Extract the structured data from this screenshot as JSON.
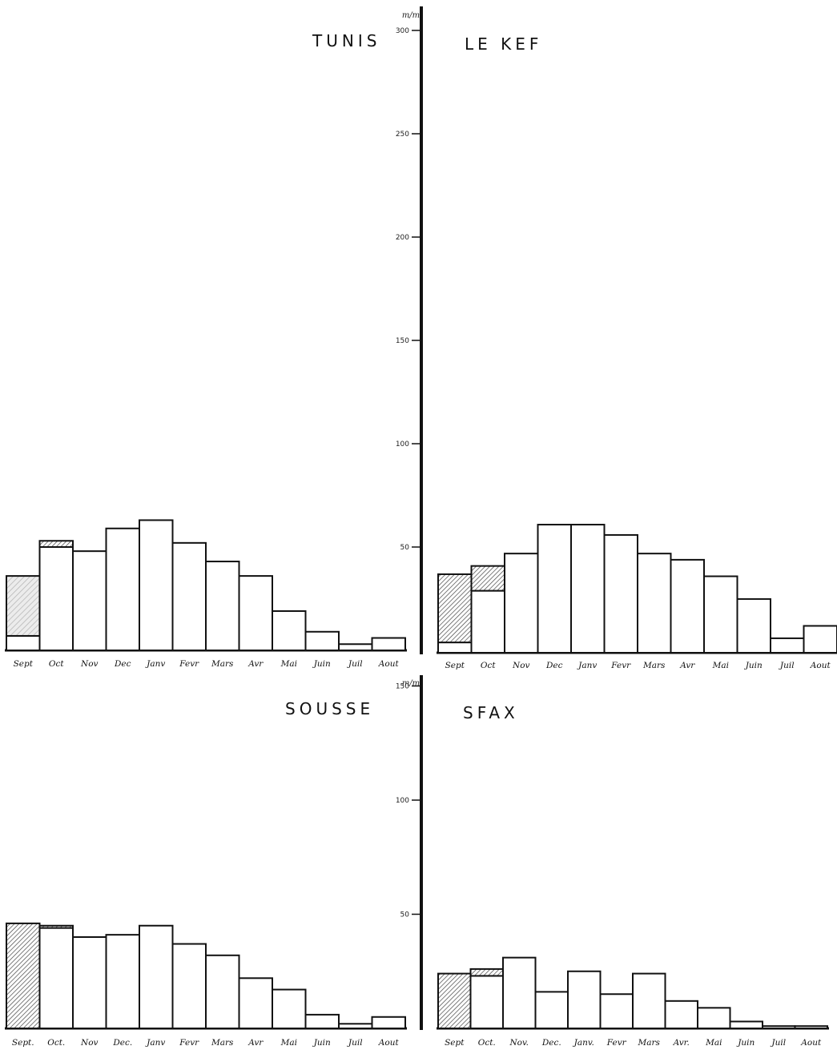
{
  "chart_data": [
    {
      "type": "bar",
      "title": "TUNIS",
      "categories": [
        "Sept",
        "Oct",
        "Nov",
        "Dec",
        "Janv",
        "Fevr",
        "Mars",
        "Avr",
        "Mai",
        "Juin",
        "Juil",
        "Aout"
      ],
      "values": [
        7,
        50,
        48,
        59,
        63,
        52,
        43,
        36,
        19,
        9,
        3,
        6
      ],
      "hatched_values": [
        29,
        3,
        0,
        0,
        0,
        0,
        0,
        0,
        0,
        0,
        0,
        0
      ],
      "hatch_style": [
        "light",
        "dark",
        "",
        "",
        "",
        "",
        "",
        "",
        "",
        "",
        "",
        ""
      ],
      "axis": {
        "unit": "m/m",
        "ticks": [
          50,
          100,
          150,
          200,
          250,
          300
        ],
        "tick_labels": [
          "50",
          "100",
          "150",
          "200",
          "250",
          "300"
        ],
        "ylim": [
          0,
          300
        ]
      }
    },
    {
      "type": "bar",
      "title": "LE KEF",
      "categories": [
        "Sept",
        "Oct",
        "Nov",
        "Dec",
        "Janv",
        "Fevr",
        "Mars",
        "Avr",
        "Mai",
        "Juin",
        "Juil",
        "Aout"
      ],
      "values": [
        5,
        30,
        48,
        62,
        62,
        57,
        48,
        45,
        37,
        26,
        7,
        13
      ],
      "hatched_values": [
        33,
        12,
        0,
        0,
        0,
        0,
        0,
        0,
        0,
        0,
        0,
        0
      ],
      "hatch_style": [
        "dark",
        "dark",
        "",
        "",
        "",
        "",
        "",
        "",
        "",
        "",
        "",
        ""
      ],
      "axis": {
        "unit": "m/m",
        "ticks": [
          50,
          100,
          150,
          200,
          250,
          300
        ],
        "tick_labels": [
          "50",
          "100",
          "150",
          "200",
          "250",
          "300"
        ],
        "ylim": [
          0,
          300
        ]
      }
    },
    {
      "type": "bar",
      "title": "SOUSSE",
      "categories": [
        "Sept.",
        "Oct.",
        "Nov",
        "Dec.",
        "Janv",
        "Fevr",
        "Mars",
        "Avr",
        "Mai",
        "Juin",
        "Juil",
        "Aout"
      ],
      "values": [
        0,
        44,
        40,
        41,
        45,
        37,
        32,
        22,
        17,
        6,
        2,
        5
      ],
      "hatched_values": [
        46,
        1,
        0,
        0,
        0,
        0,
        0,
        0,
        0,
        0,
        0,
        0
      ],
      "hatch_style": [
        "dark",
        "dark",
        "",
        "",
        "",
        "",
        "",
        "",
        "",
        "",
        "",
        ""
      ],
      "axis": {
        "unit": "m/m",
        "ticks": [
          50,
          100,
          150
        ],
        "tick_labels": [
          "50",
          "100",
          "150"
        ],
        "ylim": [
          0,
          150
        ]
      }
    },
    {
      "type": "bar",
      "title": "SFAX",
      "categories": [
        "Sept",
        "Oct.",
        "Nov.",
        "Dec.",
        "Janv.",
        "Fevr",
        "Mars",
        "Avr.",
        "Mai",
        "Juin",
        "Juil",
        "Aout"
      ],
      "values": [
        0,
        23,
        31,
        16,
        25,
        15,
        24,
        12,
        9,
        3,
        1,
        1
      ],
      "hatched_values": [
        24,
        3,
        0,
        0,
        0,
        0,
        0,
        0,
        0,
        0,
        0,
        0
      ],
      "hatch_style": [
        "dark",
        "dark",
        "",
        "",
        "",
        "",
        "",
        "",
        "",
        "",
        "",
        ""
      ],
      "axis": {
        "unit": "m/m",
        "ticks": [
          50,
          100,
          150
        ],
        "tick_labels": [
          "50",
          "100",
          "150"
        ],
        "ylim": [
          0,
          150
        ]
      }
    }
  ],
  "colors": {
    "ink": "#111111",
    "paper": "#ffffff",
    "hatch_light": "#b8b8b8",
    "hatch_dark": "#444444"
  }
}
